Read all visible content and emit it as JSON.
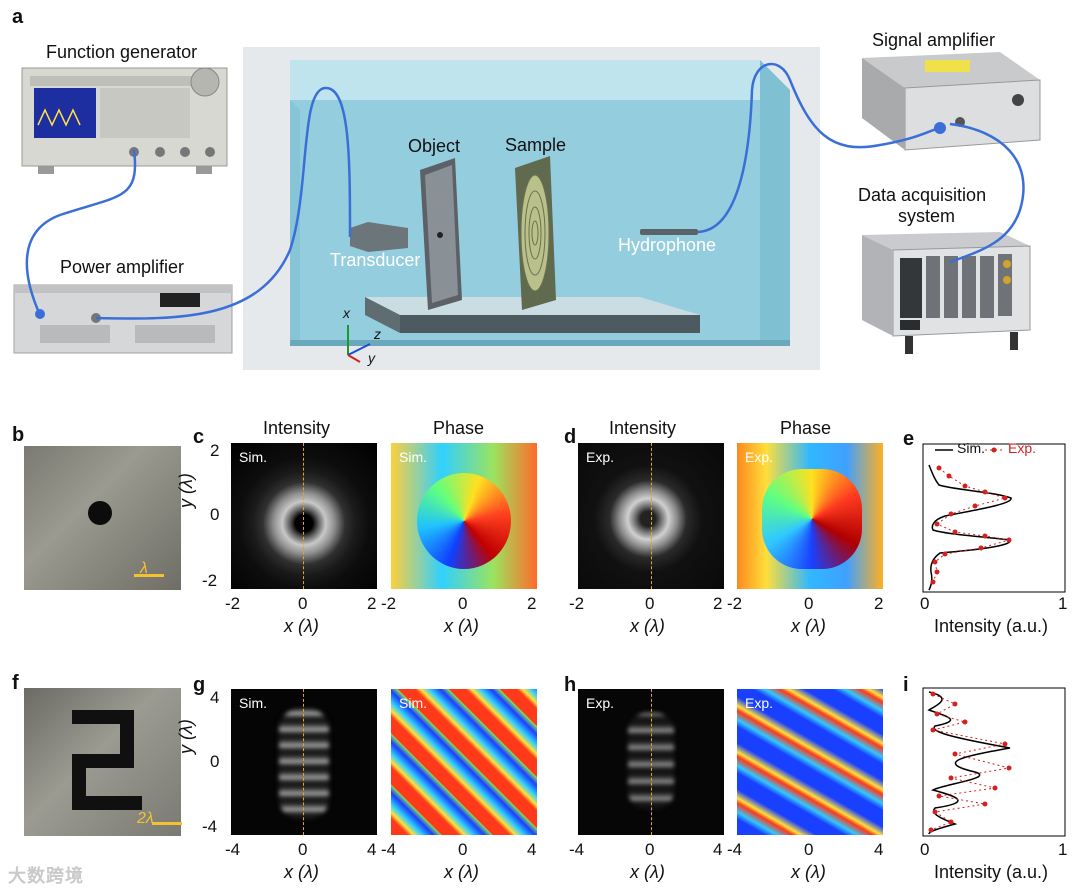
{
  "panels": {
    "a": "a",
    "b": "b",
    "c": "c",
    "d": "d",
    "e": "e",
    "f": "f",
    "g": "g",
    "h": "h",
    "i": "i"
  },
  "setup": {
    "function_generator": "Function generator",
    "power_amplifier": "Power amplifier",
    "signal_amplifier": "Signal amplifier",
    "daq_line1": "Data acquisition",
    "daq_line2": "system",
    "object": "Object",
    "sample": "Sample",
    "transducer": "Transducer",
    "hydrophone": "Hydrophone",
    "axis_x": "x",
    "axis_y": "y",
    "axis_z": "z"
  },
  "row1": {
    "intensity": "Intensity",
    "phase": "Phase",
    "sim": "Sim.",
    "exp": "Exp.",
    "scale": "λ",
    "yticks": [
      "2",
      "0",
      "-2"
    ],
    "xticks": [
      "-2",
      "0",
      "2"
    ],
    "ylabel": "y (λ)",
    "xlabel": "x (λ)",
    "legend_sim": "Sim.",
    "legend_exp": "Exp.",
    "e_xticks": [
      "0",
      "1"
    ],
    "e_xlabel": "Intensity (a.u.)"
  },
  "row2": {
    "sim": "Sim.",
    "exp": "Exp.",
    "scale": "2λ",
    "yticks": [
      "4",
      "0",
      "-4"
    ],
    "xticks": [
      "-4",
      "0",
      "4"
    ],
    "ylabel": "y (λ)",
    "xlabel": "x (λ)",
    "i_xticks": [
      "0",
      "1"
    ],
    "i_xlabel": "Intensity (a.u.)"
  },
  "watermark": "大数跨境",
  "colors": {
    "sim_line": "#000000",
    "exp_dots": "#d42020",
    "dash": "#e8a317",
    "scale": "#f2c230",
    "cable": "#3a6fd8",
    "water": "#9fd3e0"
  }
}
